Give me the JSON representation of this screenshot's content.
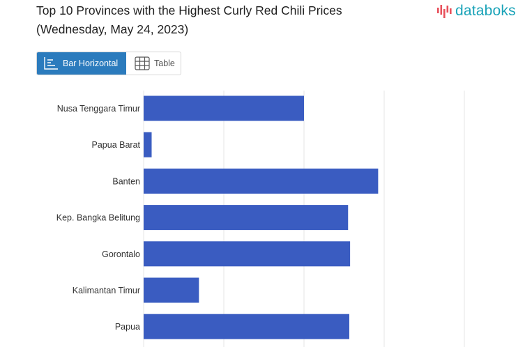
{
  "header": {
    "title_line1": "Top 10 Provinces with the Highest Curly Red Chili Prices",
    "title_line2": "(Wednesday, May 24, 2023)"
  },
  "logo": {
    "text": "databoks",
    "color": "#1aa3b8",
    "accent": "#e8505b"
  },
  "view_toggle": {
    "bar_label": "Bar Horizontal",
    "table_label": "Table",
    "active": "bar",
    "active_color": "#2b7bbd"
  },
  "chart_data": {
    "type": "bar",
    "orientation": "horizontal",
    "categories": [
      "Nusa Tenggara Timur",
      "Papua Barat",
      "Banten",
      "Kep. Bangka Belitung",
      "Gorontalo",
      "Kalimantan Timur",
      "Papua"
    ],
    "values": [
      40000,
      2000,
      58500,
      51000,
      51500,
      13800,
      51300
    ],
    "xlim": [
      0,
      80000
    ],
    "grid": true,
    "bar_color": "#3a5cc1",
    "grid_color": "#e4e4e4"
  }
}
